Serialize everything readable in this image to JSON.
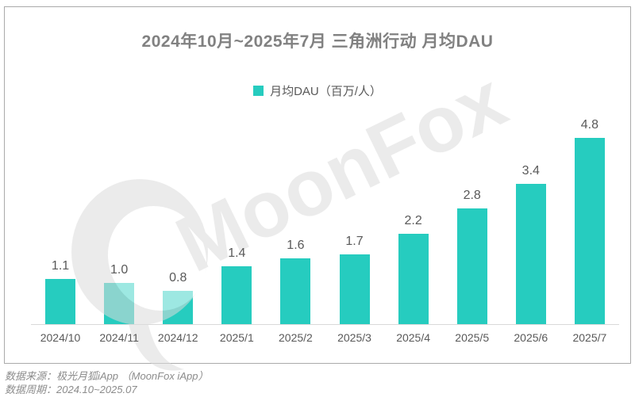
{
  "chart_data": {
    "type": "bar",
    "title": "2024年10月~2025年7月 三角洲行动 月均DAU",
    "legend": "月均DAU（百万/人）",
    "categories": [
      "2024/10",
      "2024/11",
      "2024/12",
      "2025/1",
      "2025/2",
      "2025/3",
      "2025/4",
      "2025/5",
      "2025/6",
      "2025/7"
    ],
    "values": [
      1.1,
      1.0,
      0.8,
      1.4,
      1.6,
      1.7,
      2.2,
      2.8,
      3.4,
      4.8
    ],
    "value_labels": [
      "1.1",
      "1.0",
      "0.8",
      "1.4",
      "1.6",
      "1.7",
      "2.2",
      "2.8",
      "3.4",
      "4.8"
    ],
    "xlabel": "",
    "ylabel": "",
    "ylim": [
      0,
      5
    ],
    "grid": false,
    "legend_position": "top-center",
    "bar_color": "#26CCBF",
    "label_color": "#595959",
    "axis_line_color": "#D9D9D9",
    "border_color": "#AAAAAA"
  },
  "watermark": {
    "text": "MoonFox",
    "color": "#E8E8E8"
  },
  "footer": {
    "source": "数据来源：极光月狐iApp （MoonFox iApp）",
    "period": "数据周期：2024.10~2025.07"
  }
}
